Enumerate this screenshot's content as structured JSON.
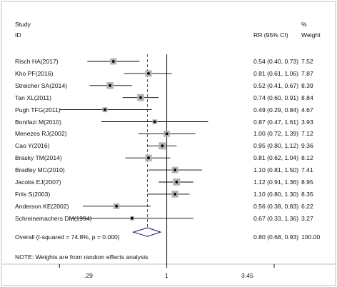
{
  "chart_data": {
    "type": "forest",
    "headers": {
      "study": "Study",
      "id": "ID",
      "effect": "RR (95% CI)",
      "percent": "%",
      "weight": "Weight"
    },
    "x_scale": "log",
    "xlim": [
      0.26,
      3.45
    ],
    "x_ticks": [
      ".29",
      "1",
      "3.45"
    ],
    "reference_line": 1,
    "overall_line": 0.8,
    "studies": [
      {
        "label": "Risch HA(2017)",
        "rr": 0.54,
        "lo": 0.4,
        "hi": 0.73,
        "ci_text": "0.54 (0.40, 0.73)",
        "weight": 7.52,
        "weight_text": "7.52"
      },
      {
        "label": "Kho PF(2016)",
        "rr": 0.81,
        "lo": 0.61,
        "hi": 1.06,
        "ci_text": "0.81 (0.61, 1.06)",
        "weight": 7.87,
        "weight_text": "7.87"
      },
      {
        "label": "Streicher SA(2014)",
        "rr": 0.52,
        "lo": 0.41,
        "hi": 0.67,
        "ci_text": "0.52 (0.41, 0.67)",
        "weight": 8.39,
        "weight_text": "8.39"
      },
      {
        "label": "Tan XL(2011)",
        "rr": 0.74,
        "lo": 0.6,
        "hi": 0.91,
        "ci_text": "0.74 (0.60, 0.91)",
        "weight": 8.84,
        "weight_text": "8.84"
      },
      {
        "label": "Pugh  TFG(2011)",
        "rr": 0.49,
        "lo": 0.29,
        "hi": 0.84,
        "ci_text": "0.49 (0.29, 0.84)",
        "weight": 4.67,
        "weight_text": "4.67"
      },
      {
        "label": "Bonifazi M(2010)",
        "rr": 0.87,
        "lo": 0.47,
        "hi": 1.61,
        "ci_text": "0.87 (0.47, 1.61)",
        "weight": 3.93,
        "weight_text": "3.93"
      },
      {
        "label": "Menezes RJ(2002)",
        "rr": 1.0,
        "lo": 0.72,
        "hi": 1.39,
        "ci_text": "1.00 (0.72, 1.39)",
        "weight": 7.12,
        "weight_text": "7.12"
      },
      {
        "label": "Cao Y(2016)",
        "rr": 0.95,
        "lo": 0.8,
        "hi": 1.12,
        "ci_text": "0.95 (0.80, 1.12)",
        "weight": 9.36,
        "weight_text": "9.36"
      },
      {
        "label": "Brasky TM(2014)",
        "rr": 0.81,
        "lo": 0.62,
        "hi": 1.04,
        "ci_text": "0.81 (0.62, 1.04)",
        "weight": 8.12,
        "weight_text": "8.12"
      },
      {
        "label": "Bradley MC(2010)",
        "rr": 1.1,
        "lo": 0.81,
        "hi": 1.5,
        "ci_text": "1.10 (0.81, 1.50)",
        "weight": 7.41,
        "weight_text": "7.41"
      },
      {
        "label": "Jacobs EJ(2007)",
        "rr": 1.12,
        "lo": 0.91,
        "hi": 1.36,
        "ci_text": "1.12 (0.91, 1.36)",
        "weight": 8.95,
        "weight_text": "8.95"
      },
      {
        "label": "Friis S(2003)",
        "rr": 1.1,
        "lo": 0.8,
        "hi": 1.3,
        "ci_text": "1.10 (0.80, 1.30)",
        "weight": 8.35,
        "weight_text": "8.35"
      },
      {
        "label": "Anderson KE(2002)",
        "rr": 0.56,
        "lo": 0.38,
        "hi": 0.83,
        "ci_text": "0.56 (0.38, 0.83)",
        "weight": 6.22,
        "weight_text": "6.22"
      },
      {
        "label": "Schreinemachers DM(1994)",
        "rr": 0.67,
        "lo": 0.33,
        "hi": 1.36,
        "ci_text": "0.67 (0.33, 1.36)",
        "weight": 3.27,
        "weight_text": "3.27"
      }
    ],
    "overall": {
      "label": "Overall  (I-squared = 74.8%, p = 0.000)",
      "rr": 0.8,
      "lo": 0.68,
      "hi": 0.93,
      "ci_text": "0.80 (0.68, 0.93)",
      "weight_text": "100.00"
    },
    "note": "NOTE: Weights are from random effects analysis",
    "colors": {
      "frame": "#bfbfbf",
      "box": "#b3b3b3",
      "line": "#000000",
      "reference_line": "#000000",
      "overall_line": "#b22222",
      "diamond": "#1f1f6e"
    }
  }
}
